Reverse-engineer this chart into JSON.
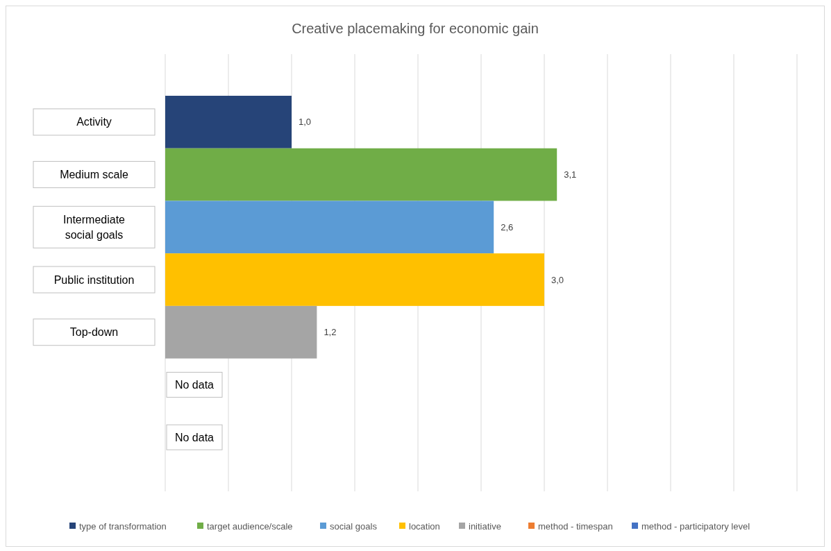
{
  "chart_data": {
    "type": "bar",
    "orientation": "horizontal",
    "title": "Creative placemaking for economic gain",
    "categories": [
      "Activity",
      "Medium scale",
      "Intermediate social goals",
      "Public institution",
      "Top-down",
      null,
      null
    ],
    "series": [
      {
        "name": "type of transformation",
        "color": "#264478",
        "values": [
          1.0,
          null,
          null,
          null,
          null,
          null,
          null
        ],
        "value_labels": [
          "1,0",
          null,
          null,
          null,
          null,
          null,
          null
        ]
      },
      {
        "name": "target audience/scale",
        "color": "#70ad47",
        "values": [
          null,
          3.1,
          null,
          null,
          null,
          null,
          null
        ],
        "value_labels": [
          null,
          "3,1",
          null,
          null,
          null,
          null,
          null
        ]
      },
      {
        "name": "social goals",
        "color": "#5b9bd5",
        "values": [
          null,
          null,
          2.6,
          null,
          null,
          null,
          null
        ],
        "value_labels": [
          null,
          null,
          "2,6",
          null,
          null,
          null,
          null
        ]
      },
      {
        "name": "location",
        "color": "#ffc000",
        "values": [
          null,
          null,
          null,
          3.0,
          null,
          null,
          null
        ],
        "value_labels": [
          null,
          null,
          null,
          "3,0",
          null,
          null,
          null
        ]
      },
      {
        "name": "initiative",
        "color": "#a5a5a5",
        "values": [
          null,
          null,
          null,
          null,
          1.2,
          null,
          null
        ],
        "value_labels": [
          null,
          null,
          null,
          null,
          "1,2",
          null,
          null
        ]
      },
      {
        "name": "method - timespan",
        "color": "#ed7d31",
        "values": [
          null,
          null,
          null,
          null,
          null,
          null,
          null
        ],
        "value_labels": [
          null,
          null,
          null,
          null,
          null,
          "No data",
          null
        ]
      },
      {
        "name": "method - participatory level",
        "color": "#4472c4",
        "values": [
          null,
          null,
          null,
          null,
          null,
          null,
          null
        ],
        "value_labels": [
          null,
          null,
          null,
          null,
          null,
          null,
          "No data"
        ]
      }
    ],
    "xlim": [
      0,
      5
    ],
    "xticks": [
      {
        "value": 0,
        "label": null
      },
      {
        "value": 0.5,
        "label": null
      },
      {
        "value": 1,
        "label": null
      },
      {
        "value": 1.5,
        "label": null
      },
      {
        "value": 2,
        "label": null
      },
      {
        "value": 2.5,
        "label": null
      },
      {
        "value": 3,
        "label": null
      },
      {
        "value": 3.5,
        "label": null
      },
      {
        "value": 4,
        "label": null
      },
      {
        "value": 4.5,
        "label": null
      },
      {
        "value": 5,
        "label": null
      }
    ],
    "grid": "x",
    "legend": "bottom"
  }
}
